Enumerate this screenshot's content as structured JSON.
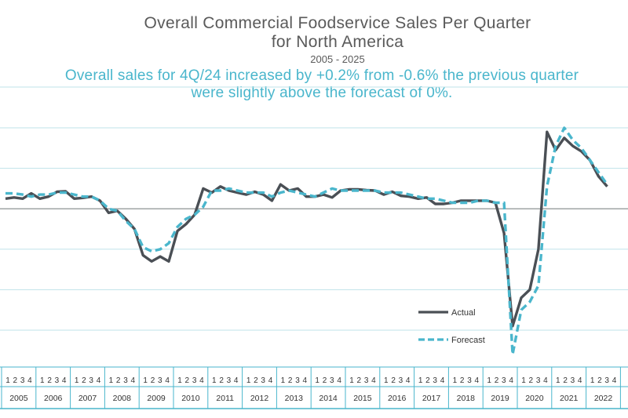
{
  "title_line1": "Overall Commercial Foodservice Sales Per Quarter",
  "title_line2": "for North America",
  "subtitle": "2005 - 2025",
  "note_line1": "Overall sales for 4Q/24 increased by +0.2% from -0.6% the previous quarter",
  "note_line2": "were slightly above the forecast of 0%.",
  "colors": {
    "actual": "#4a4f55",
    "forecast": "#4ab6cc",
    "grid": "#bfe3ea",
    "axis": "#4ab6cc"
  },
  "chart_data": {
    "type": "line",
    "title": "Overall Commercial Foodservice Sales Per Quarter for North America",
    "subtitle": "2005 - 2025",
    "ylim": [
      -30,
      20
    ],
    "grid": true,
    "legend_position": "lower-right",
    "quarter_labels": [
      "1",
      "2",
      "3",
      "4"
    ],
    "years": [
      "2005",
      "2006",
      "2007",
      "2008",
      "2009",
      "2010",
      "2011",
      "2012",
      "2013",
      "2014",
      "2015",
      "2016",
      "2017",
      "2018",
      "2019",
      "2020",
      "2021",
      "2022"
    ],
    "series": [
      {
        "name": "Actual",
        "style": "solid",
        "values": [
          2.5,
          2.8,
          2.5,
          3.8,
          2.5,
          3.0,
          4.2,
          4.3,
          2.5,
          2.7,
          3.0,
          2.0,
          -1.0,
          -0.5,
          -2.5,
          -5.0,
          -11.5,
          -13.0,
          -11.8,
          -13.0,
          -5.5,
          -3.8,
          -1.5,
          5.0,
          4.0,
          5.5,
          4.5,
          4.0,
          3.5,
          4.2,
          3.5,
          2.0,
          6.0,
          4.5,
          5.0,
          3.0,
          3.0,
          3.5,
          2.8,
          4.5,
          4.8,
          4.8,
          4.6,
          4.5,
          3.5,
          4.2,
          3.2,
          3.0,
          2.5,
          2.8,
          1.2,
          1.2,
          1.5,
          2.0,
          2.0,
          2.0,
          2.0,
          1.5,
          -6.0,
          -29.0,
          -22.0,
          -20.0,
          -10.0,
          19.0,
          14.5,
          17.5,
          15.5,
          14.2,
          12.0,
          8.0,
          5.5
        ]
      },
      {
        "name": "Forecast",
        "style": "dashed",
        "values": [
          3.8,
          3.8,
          3.5,
          3.0,
          3.5,
          3.5,
          4.0,
          4.0,
          3.5,
          3.0,
          3.0,
          2.0,
          0.0,
          -0.5,
          -3.0,
          -5.0,
          -9.5,
          -10.5,
          -10.0,
          -8.5,
          -4.5,
          -2.5,
          -1.5,
          0.5,
          4.5,
          4.5,
          5.0,
          4.5,
          4.0,
          4.0,
          4.0,
          3.0,
          4.0,
          4.5,
          4.0,
          3.5,
          3.0,
          4.0,
          5.0,
          4.5,
          4.5,
          4.5,
          4.5,
          4.5,
          4.0,
          4.0,
          4.0,
          3.5,
          3.0,
          2.5,
          2.5,
          2.0,
          1.5,
          1.5,
          1.5,
          2.0,
          2.0,
          1.5,
          1.5,
          -36.0,
          -25.0,
          -23.0,
          -19.0,
          5.5,
          15.5,
          20.0,
          17.0,
          15.0,
          12.0,
          9.0,
          6.0
        ]
      }
    ]
  }
}
